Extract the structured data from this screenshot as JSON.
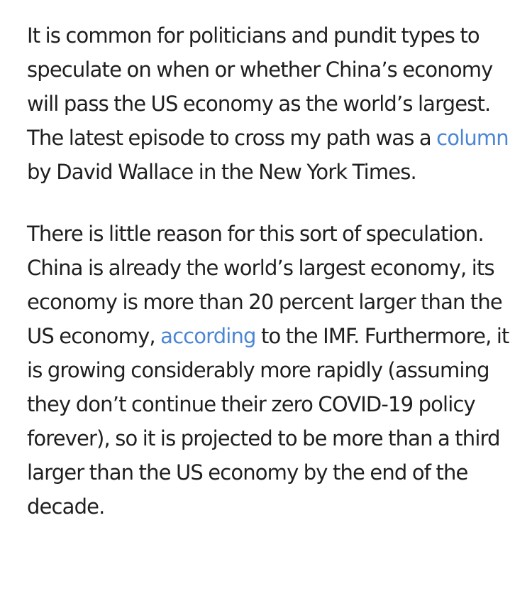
{
  "article": {
    "p1": {
      "before": "It is common for politicians and pundit types to speculate on when or whether China’s economy will pass the US economy as the world’s largest. The latest episode to cross my path was a ",
      "link": "column",
      "after": " by David Wallace in the New York Times."
    },
    "p2": {
      "before": "There is little reason for this sort of speculation. China is already the world’s largest economy, its economy is more than 20 percent larger than the US economy, ",
      "link": "according",
      "after": " to the IMF. Furthermore, it is growing considerably more rapidly (assuming they don’t continue their zero COVID-19 policy forever), so it is projected to be more than a third larger than the US economy by the end of the decade."
    },
    "link_color": "#4a86d4",
    "text_color": "#1f1f1f"
  }
}
